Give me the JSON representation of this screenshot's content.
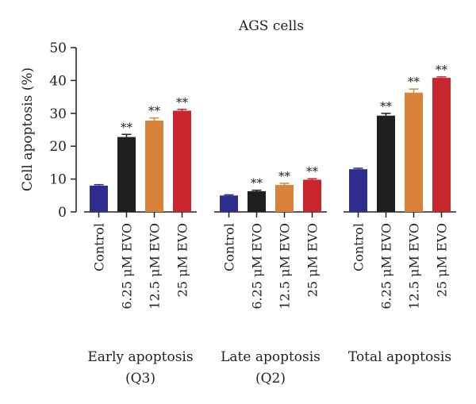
{
  "chart_data": {
    "type": "bar",
    "title": "AGS cells",
    "ylabel": "Cell apoptosis (%)",
    "xlabel": "",
    "ylim": [
      0,
      50
    ],
    "yticks": [
      0,
      10,
      20,
      30,
      40,
      50
    ],
    "grid": false,
    "legend": "none",
    "significance_mark": "**",
    "groups": [
      {
        "label_line1": "Early apoptosis",
        "label_line2": "(Q3)",
        "bars": [
          {
            "label": "Control",
            "value": 8.0,
            "error": 0.3,
            "color": "#2e2c8c",
            "sig": false
          },
          {
            "label": "6.25 μM EVO",
            "value": 22.8,
            "error": 0.8,
            "color": "#1f1f1f",
            "sig": true
          },
          {
            "label": "12.5 μM EVO",
            "value": 27.8,
            "error": 0.8,
            "color": "#d8823a",
            "sig": true
          },
          {
            "label": "25 μM EVO",
            "value": 30.8,
            "error": 0.4,
            "color": "#c9252c",
            "sig": true
          }
        ]
      },
      {
        "label_line1": "Late apoptosis",
        "label_line2": "(Q2)",
        "bars": [
          {
            "label": "Control",
            "value": 5.0,
            "error": 0.2,
            "color": "#2e2c8c",
            "sig": false
          },
          {
            "label": "6.25 μM EVO",
            "value": 6.3,
            "error": 0.3,
            "color": "#1f1f1f",
            "sig": true
          },
          {
            "label": "12.5 μM EVO",
            "value": 8.2,
            "error": 0.5,
            "color": "#d8823a",
            "sig": true
          },
          {
            "label": "25 μM EVO",
            "value": 9.8,
            "error": 0.3,
            "color": "#c9252c",
            "sig": true
          }
        ]
      },
      {
        "label_line1": "Total apoptosis",
        "label_line2": "",
        "bars": [
          {
            "label": "Control",
            "value": 13.0,
            "error": 0.3,
            "color": "#2e2c8c",
            "sig": false
          },
          {
            "label": "6.25 μM EVO",
            "value": 29.3,
            "error": 0.7,
            "color": "#1f1f1f",
            "sig": true
          },
          {
            "label": "12.5 μM EVO",
            "value": 36.3,
            "error": 1.1,
            "color": "#d8823a",
            "sig": true
          },
          {
            "label": "25 μM EVO",
            "value": 40.8,
            "error": 0.3,
            "color": "#c9252c",
            "sig": true
          }
        ]
      }
    ]
  }
}
